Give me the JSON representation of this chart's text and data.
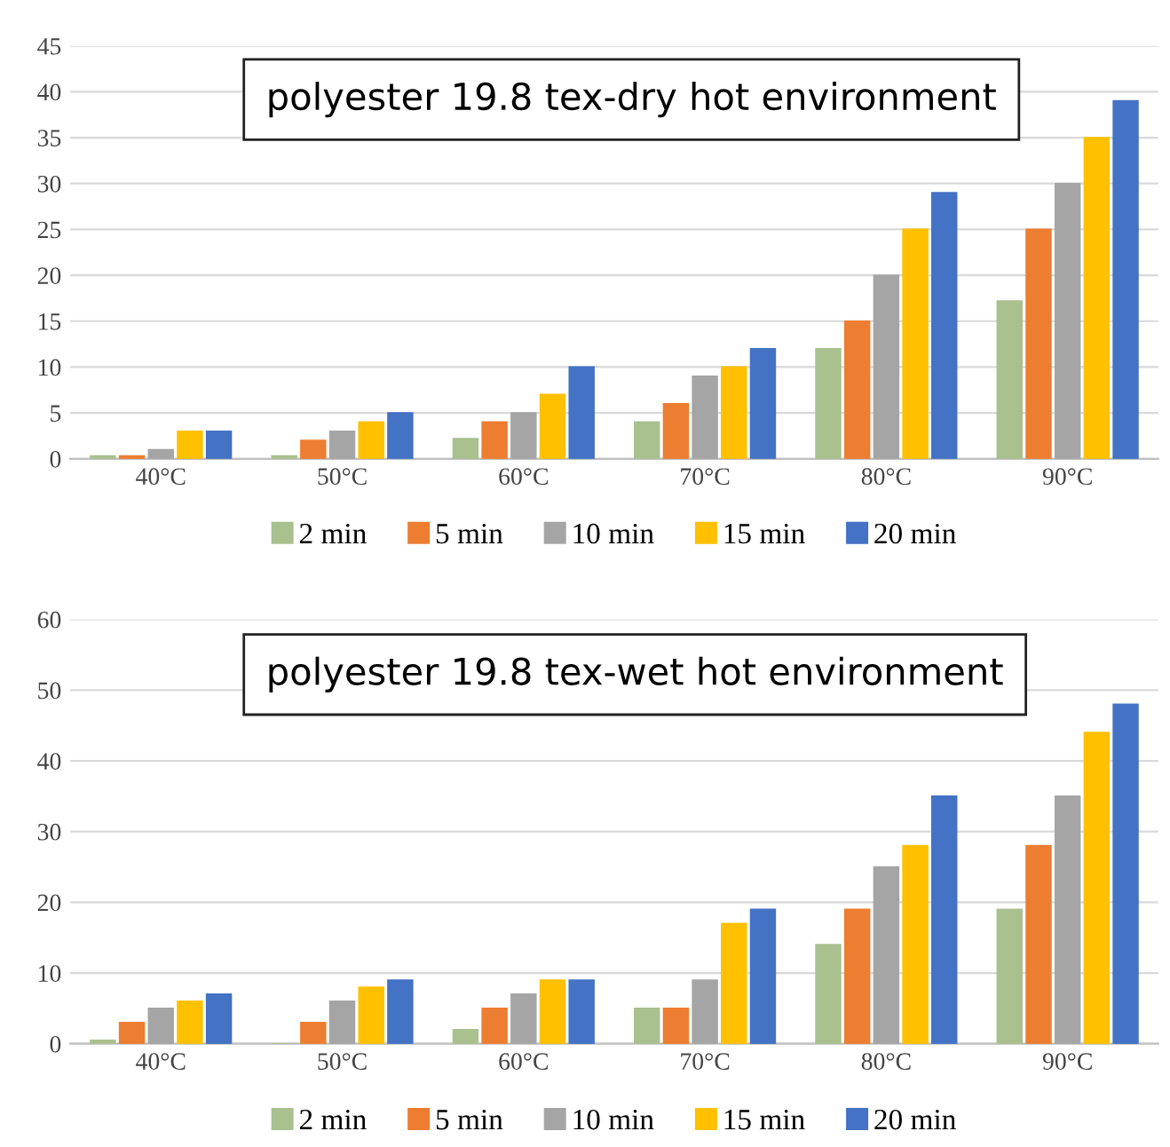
{
  "chart_data": [
    {
      "type": "bar",
      "title": "polyester 19.8 tex-dry hot environment",
      "categories": [
        "40°C",
        "50°C",
        "60°C",
        "70°C",
        "80°C",
        "90°C"
      ],
      "ylim": [
        0,
        45
      ],
      "yticks": [
        0,
        5,
        10,
        15,
        20,
        25,
        30,
        35,
        40,
        45
      ],
      "grid": "y",
      "legend": "bottom",
      "series": [
        {
          "name": "2 min",
          "color": "#a9c08f",
          "values": [
            0.3,
            0.3,
            2.2,
            4,
            12,
            17.2
          ]
        },
        {
          "name": "5 min",
          "color": "#ed7d31",
          "values": [
            0.3,
            2,
            4,
            6,
            15,
            25
          ]
        },
        {
          "name": "10 min",
          "color": "#a5a5a5",
          "values": [
            1,
            3,
            5,
            9,
            20,
            30
          ]
        },
        {
          "name": "15 min",
          "color": "#ffc000",
          "values": [
            3,
            4,
            7,
            10,
            25,
            35
          ]
        },
        {
          "name": "20 min",
          "color": "#4472c4",
          "values": [
            3,
            5,
            10,
            12,
            29,
            39
          ]
        }
      ]
    },
    {
      "type": "bar",
      "title": "polyester 19.8 tex-wet hot environment",
      "categories": [
        "40°C",
        "50°C",
        "60°C",
        "70°C",
        "80°C",
        "90°C"
      ],
      "ylim": [
        0,
        60
      ],
      "yticks": [
        0,
        10,
        20,
        30,
        40,
        50,
        60
      ],
      "grid": "y",
      "legend": "bottom",
      "series": [
        {
          "name": "2 min",
          "color": "#a9c08f",
          "values": [
            0.5,
            0,
            2,
            5,
            14,
            19
          ]
        },
        {
          "name": "5 min",
          "color": "#ed7d31",
          "values": [
            3,
            3,
            5,
            5,
            19,
            28
          ]
        },
        {
          "name": "10 min",
          "color": "#a5a5a5",
          "values": [
            5,
            6,
            7,
            9,
            25,
            35
          ]
        },
        {
          "name": "15 min",
          "color": "#ffc000",
          "values": [
            6,
            8,
            9,
            17,
            28,
            44
          ]
        },
        {
          "name": "20 min",
          "color": "#4472c4",
          "values": [
            7,
            9,
            9,
            19,
            35,
            48
          ]
        }
      ]
    }
  ]
}
